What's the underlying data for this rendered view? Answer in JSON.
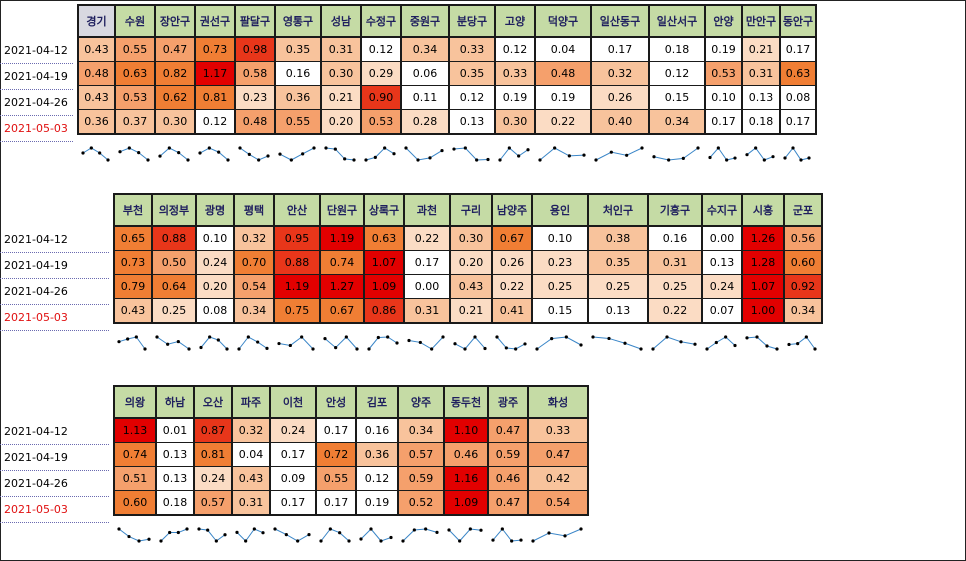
{
  "dates": [
    "2021-04-12",
    "2021-04-19",
    "2021-04-26",
    "2021-05-03"
  ],
  "colors": {
    "header_bg": "#c5dba5",
    "header_text": "#1f1f5e",
    "first_header_bg": "#d8d8e0",
    "latest_date": "#e01010",
    "sparkline": "#3a86c8",
    "scale": [
      "#ffffff",
      "#fbdcc4",
      "#f8c39c",
      "#f5a06c",
      "#f07e34",
      "#e8361a",
      "#e20000"
    ]
  },
  "chart_data": [
    {
      "type": "heatmap",
      "rows": [
        "2021-04-12",
        "2021-04-19",
        "2021-04-26",
        "2021-05-03"
      ],
      "columns": [
        "경기",
        "수원",
        "장안구",
        "권선구",
        "팔달구",
        "영통구",
        "성남",
        "수정구",
        "중원구",
        "분당구",
        "고양",
        "덕양구",
        "일산동구",
        "일산서구",
        "안양",
        "만안구",
        "동안구"
      ],
      "values": [
        [
          0.43,
          0.55,
          0.47,
          0.73,
          0.98,
          0.35,
          0.31,
          0.12,
          0.34,
          0.33,
          0.12,
          0.04,
          0.17,
          0.18,
          0.19,
          0.21,
          0.17
        ],
        [
          0.48,
          0.63,
          0.82,
          1.17,
          0.58,
          0.16,
          0.3,
          0.29,
          0.06,
          0.35,
          0.33,
          0.48,
          0.32,
          0.12,
          0.53,
          0.31,
          0.63
        ],
        [
          0.43,
          0.53,
          0.62,
          0.81,
          0.23,
          0.36,
          0.21,
          0.9,
          0.11,
          0.12,
          0.19,
          0.19,
          0.26,
          0.15,
          0.1,
          0.13,
          0.08
        ],
        [
          0.36,
          0.37,
          0.3,
          0.12,
          0.48,
          0.55,
          0.2,
          0.53,
          0.28,
          0.13,
          0.3,
          0.22,
          0.4,
          0.34,
          0.17,
          0.18,
          0.17
        ]
      ],
      "sparklines": true
    },
    {
      "type": "heatmap",
      "rows": [
        "2021-04-12",
        "2021-04-19",
        "2021-04-26",
        "2021-05-03"
      ],
      "columns": [
        "부천",
        "의정부",
        "광명",
        "평택",
        "안산",
        "단원구",
        "상록구",
        "과천",
        "구리",
        "남양주",
        "용인",
        "처인구",
        "기흥구",
        "수지구",
        "시흥",
        "군포"
      ],
      "values": [
        [
          0.65,
          0.88,
          0.1,
          0.32,
          0.95,
          1.19,
          0.63,
          0.22,
          0.3,
          0.67,
          0.1,
          0.38,
          0.16,
          0.0,
          1.26,
          0.56
        ],
        [
          0.73,
          0.5,
          0.24,
          0.7,
          0.88,
          0.74,
          1.07,
          0.17,
          0.2,
          0.26,
          0.23,
          0.35,
          0.31,
          0.13,
          1.28,
          0.6
        ],
        [
          0.79,
          0.64,
          0.2,
          0.54,
          1.19,
          1.27,
          1.09,
          0.0,
          0.43,
          0.22,
          0.25,
          0.25,
          0.25,
          0.24,
          1.07,
          0.92
        ],
        [
          0.43,
          0.25,
          0.08,
          0.34,
          0.75,
          0.67,
          0.86,
          0.31,
          0.21,
          0.41,
          0.15,
          0.13,
          0.22,
          0.07,
          1.0,
          0.34
        ]
      ],
      "sparklines": true
    },
    {
      "type": "heatmap",
      "rows": [
        "2021-04-12",
        "2021-04-19",
        "2021-04-26",
        "2021-05-03"
      ],
      "columns": [
        "의왕",
        "하남",
        "오산",
        "파주",
        "이천",
        "안성",
        "김포",
        "양주",
        "동두천",
        "광주",
        "화성"
      ],
      "values": [
        [
          1.13,
          0.01,
          0.87,
          0.32,
          0.24,
          0.17,
          0.16,
          0.34,
          1.1,
          0.47,
          0.33
        ],
        [
          0.74,
          0.13,
          0.81,
          0.04,
          0.17,
          0.72,
          0.36,
          0.57,
          0.46,
          0.59,
          0.47
        ],
        [
          0.51,
          0.13,
          0.24,
          0.43,
          0.09,
          0.55,
          0.12,
          0.59,
          1.16,
          0.46,
          0.42
        ],
        [
          0.6,
          0.18,
          0.57,
          0.31,
          0.17,
          0.17,
          0.19,
          0.52,
          1.09,
          0.47,
          0.54
        ]
      ],
      "sparklines": true
    }
  ]
}
